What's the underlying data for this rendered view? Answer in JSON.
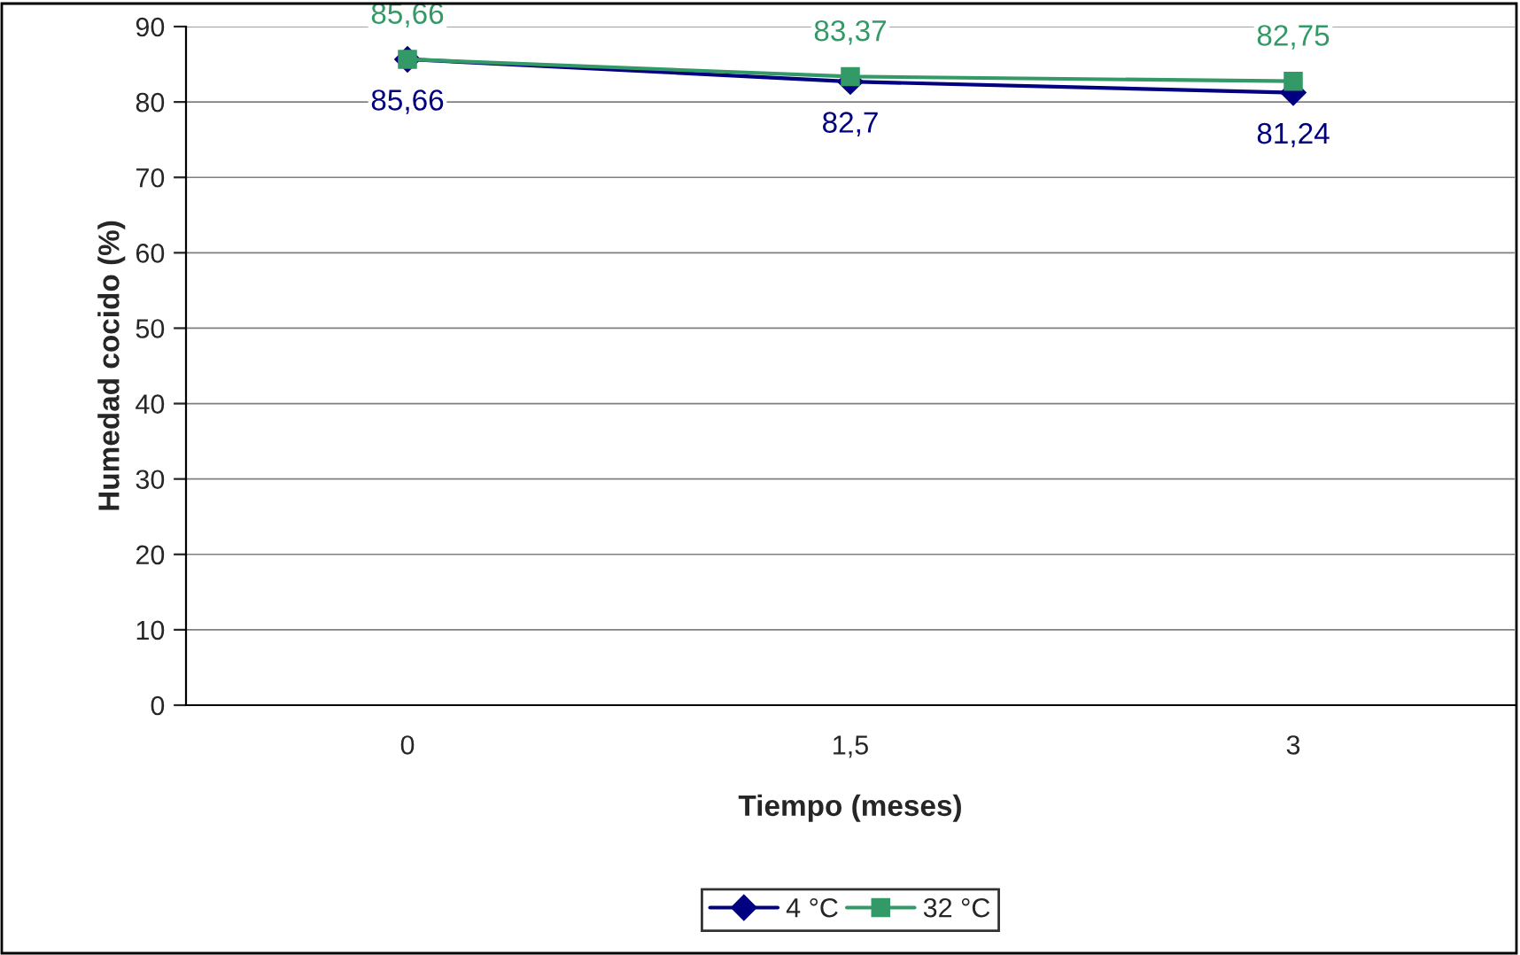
{
  "chart_data": {
    "type": "line",
    "xlabel": "Tiempo (meses)",
    "ylabel": "Humedad cocido (%)",
    "categories": [
      "0",
      "1,5",
      "3"
    ],
    "series": [
      {
        "name": "4 °C",
        "color": "#000080",
        "marker": "diamond",
        "values": [
          85.66,
          82.7,
          81.24
        ],
        "value_labels": [
          "85,66",
          "82,7",
          "81,24"
        ]
      },
      {
        "name": "32 °C",
        "color": "#339966",
        "marker": "square",
        "values": [
          85.66,
          83.37,
          82.75
        ],
        "value_labels": [
          "85,66",
          "83,37",
          "82,75"
        ]
      }
    ],
    "ylim": [
      0,
      90
    ],
    "yticks": [
      0,
      10,
      20,
      30,
      40,
      50,
      60,
      70,
      80,
      90
    ],
    "grid": "y",
    "legend": "bottom"
  }
}
